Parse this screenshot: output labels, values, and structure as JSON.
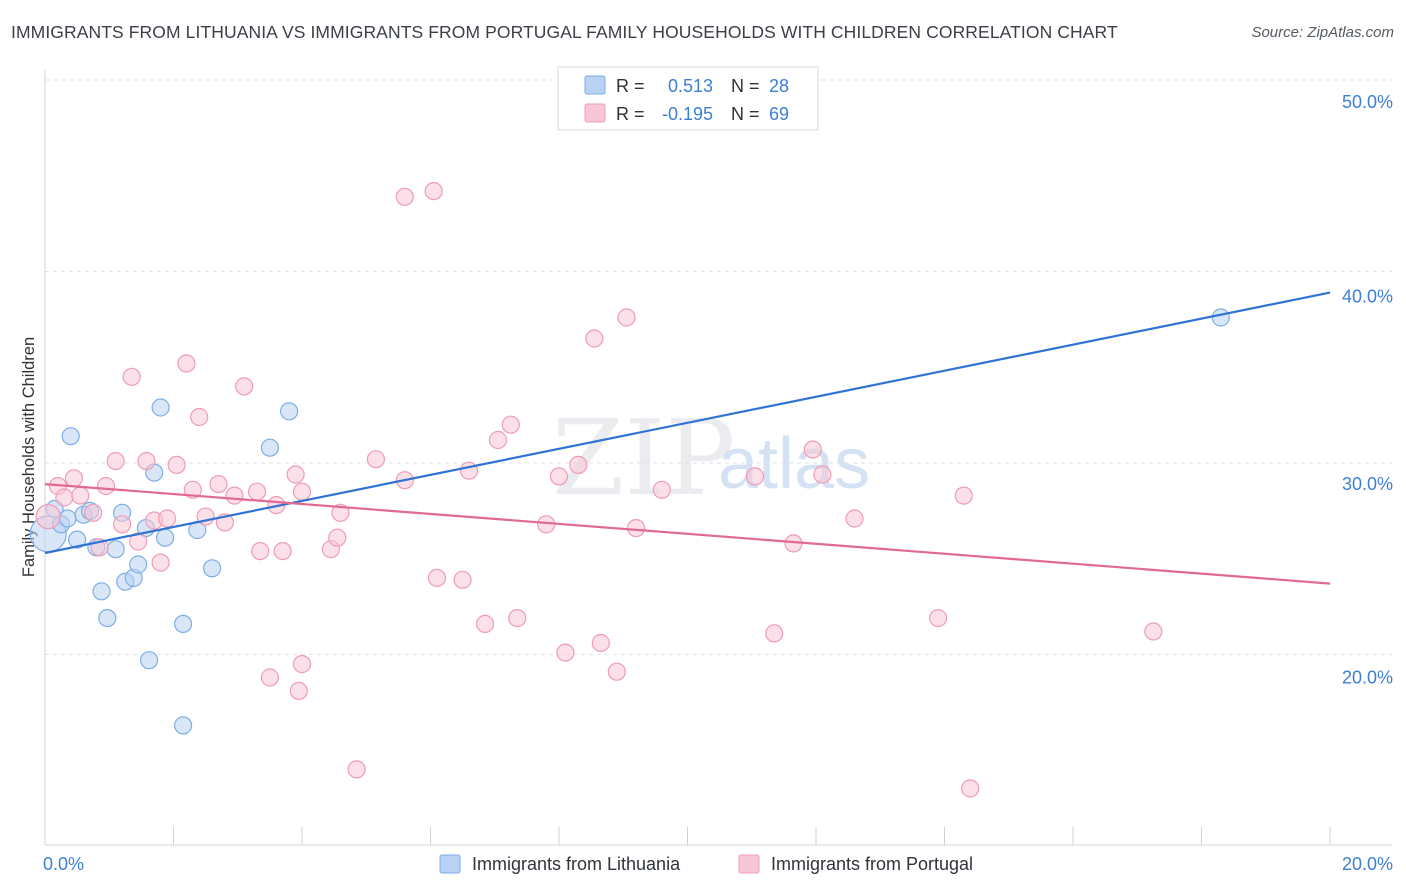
{
  "title": "IMMIGRANTS FROM LITHUANIA VS IMMIGRANTS FROM PORTUGAL FAMILY HOUSEHOLDS WITH CHILDREN CORRELATION CHART",
  "source": "Source: ZipAtlas.com",
  "watermark": {
    "zip": "ZIP",
    "atlas": "atlas"
  },
  "colors": {
    "lithuania_fill": "#b8d2f3",
    "lithuania_stroke": "#7eaee6",
    "lithuania_line": "#2f73d4",
    "portugal_fill": "#f8c6d5",
    "portugal_stroke": "#ee9cb6",
    "portugal_line": "#e06a94",
    "tick_color": "#3d7fd6",
    "grid": "#dfe2e6"
  },
  "legend_top": {
    "rows": [
      {
        "series": "lithuania",
        "r_label": "R =",
        "r_value": "0.513",
        "n_label": "N =",
        "n_value": "28"
      },
      {
        "series": "portugal",
        "r_label": "R =",
        "r_value": "-0.195",
        "n_label": "N =",
        "n_value": "69"
      }
    ]
  },
  "legend_bottom": {
    "items": [
      {
        "series": "lithuania",
        "label": "Immigrants from Lithuania"
      },
      {
        "series": "portugal",
        "label": "Immigrants from Portugal"
      }
    ]
  },
  "chart_data": {
    "type": "scatter",
    "title": "IMMIGRANTS FROM LITHUANIA VS IMMIGRANTS FROM PORTUGAL FAMILY HOUSEHOLDS WITH CHILDREN CORRELATION CHART",
    "xlabel": "",
    "ylabel": "Family Households with Children",
    "xlim": [
      0,
      20
    ],
    "ylim": [
      10,
      51
    ],
    "x_tick_labels": [
      {
        "value": 0,
        "label": "0.0%"
      },
      {
        "value": 20,
        "label": "20.0%"
      }
    ],
    "y_tick_labels": [
      {
        "value": 50,
        "label": "50.0%"
      },
      {
        "value": 40,
        "label": "40.0%"
      },
      {
        "value": 30,
        "label": "30.0%"
      },
      {
        "value": 20,
        "label": "20.0%"
      }
    ],
    "y_gridlines": [
      20,
      30,
      40,
      50
    ],
    "x_minor_ticks": [
      0,
      2,
      4,
      6,
      8,
      10,
      12,
      14,
      16,
      18,
      20
    ],
    "series": [
      {
        "name": "Immigrants from Lithuania",
        "key": "lithuania",
        "trend": {
          "x": [
            0,
            20
          ],
          "y": [
            25.3,
            38.9
          ]
        },
        "points": [
          [
            0.05,
            26.3,
            18
          ],
          [
            0.15,
            27.6,
            8
          ],
          [
            0.25,
            26.8,
            8
          ],
          [
            0.35,
            27.1,
            8
          ],
          [
            0.4,
            31.4,
            8
          ],
          [
            0.5,
            26.0,
            8
          ],
          [
            0.6,
            27.3,
            8
          ],
          [
            0.7,
            27.5,
            8
          ],
          [
            0.8,
            25.6,
            8
          ],
          [
            0.88,
            23.3,
            8
          ],
          [
            0.97,
            21.9,
            8
          ],
          [
            1.1,
            25.5,
            8
          ],
          [
            1.2,
            27.4,
            8
          ],
          [
            1.25,
            23.8,
            8
          ],
          [
            1.38,
            24.0,
            8
          ],
          [
            1.45,
            24.7,
            8
          ],
          [
            1.57,
            26.6,
            8
          ],
          [
            1.62,
            19.7,
            8
          ],
          [
            1.7,
            29.5,
            8
          ],
          [
            1.8,
            32.9,
            8
          ],
          [
            1.87,
            26.1,
            8
          ],
          [
            2.15,
            21.6,
            8
          ],
          [
            2.15,
            16.3,
            8
          ],
          [
            2.37,
            26.5,
            8
          ],
          [
            2.6,
            24.5,
            8
          ],
          [
            3.5,
            30.8,
            8
          ],
          [
            3.8,
            32.7,
            8
          ],
          [
            18.3,
            37.6,
            8
          ]
        ]
      },
      {
        "name": "Immigrants from Portugal",
        "key": "portugal",
        "trend": {
          "x": [
            0,
            20
          ],
          "y": [
            28.9,
            23.7
          ]
        },
        "points": [
          [
            0.05,
            27.2,
            12
          ],
          [
            0.2,
            28.8,
            8
          ],
          [
            0.3,
            28.2,
            8
          ],
          [
            0.45,
            29.2,
            8
          ],
          [
            0.55,
            28.3,
            8
          ],
          [
            0.75,
            27.4,
            8
          ],
          [
            0.85,
            25.6,
            8
          ],
          [
            0.95,
            28.8,
            8
          ],
          [
            1.1,
            30.1,
            8
          ],
          [
            1.2,
            26.8,
            8
          ],
          [
            1.35,
            34.5,
            8
          ],
          [
            1.45,
            25.9,
            8
          ],
          [
            1.58,
            30.1,
            8
          ],
          [
            1.7,
            27.0,
            8
          ],
          [
            1.8,
            24.8,
            8
          ],
          [
            1.9,
            27.1,
            8
          ],
          [
            2.05,
            29.9,
            8
          ],
          [
            2.2,
            35.2,
            8
          ],
          [
            2.3,
            28.6,
            8
          ],
          [
            2.4,
            32.4,
            8
          ],
          [
            2.5,
            27.2,
            8
          ],
          [
            2.7,
            28.9,
            8
          ],
          [
            2.8,
            26.9,
            8
          ],
          [
            2.95,
            28.3,
            8
          ],
          [
            3.1,
            34.0,
            8
          ],
          [
            3.3,
            28.5,
            8
          ],
          [
            3.35,
            25.4,
            8
          ],
          [
            3.5,
            18.8,
            8
          ],
          [
            3.6,
            27.8,
            8
          ],
          [
            3.7,
            25.4,
            8
          ],
          [
            3.9,
            29.4,
            8
          ],
          [
            4.0,
            28.5,
            8
          ],
          [
            3.95,
            18.1,
            8
          ],
          [
            4.0,
            19.5,
            8
          ],
          [
            4.45,
            25.5,
            8
          ],
          [
            4.55,
            26.1,
            8
          ],
          [
            4.6,
            27.4,
            8
          ],
          [
            4.85,
            14.0,
            8
          ],
          [
            5.15,
            30.2,
            8
          ],
          [
            5.6,
            29.1,
            8
          ],
          [
            5.6,
            43.9,
            8
          ],
          [
            6.05,
            44.2,
            8
          ],
          [
            6.1,
            24.0,
            8
          ],
          [
            6.5,
            23.9,
            8
          ],
          [
            6.6,
            29.6,
            8
          ],
          [
            6.85,
            21.6,
            8
          ],
          [
            7.05,
            31.2,
            8
          ],
          [
            7.25,
            32.0,
            8
          ],
          [
            7.35,
            21.9,
            8
          ],
          [
            7.8,
            26.8,
            8
          ],
          [
            8.0,
            29.3,
            8
          ],
          [
            8.1,
            20.1,
            8
          ],
          [
            8.3,
            29.9,
            8
          ],
          [
            8.55,
            36.5,
            8
          ],
          [
            8.65,
            20.6,
            8
          ],
          [
            8.9,
            19.1,
            8
          ],
          [
            9.05,
            37.6,
            8
          ],
          [
            9.2,
            26.6,
            8
          ],
          [
            9.6,
            28.6,
            8
          ],
          [
            11.05,
            29.3,
            8
          ],
          [
            11.35,
            21.1,
            8
          ],
          [
            11.65,
            25.8,
            8
          ],
          [
            11.95,
            30.7,
            8
          ],
          [
            12.1,
            29.4,
            8
          ],
          [
            12.6,
            27.1,
            8
          ],
          [
            13.9,
            21.9,
            8
          ],
          [
            14.3,
            28.3,
            8
          ],
          [
            14.4,
            13.0,
            8
          ],
          [
            17.25,
            21.2,
            8
          ]
        ]
      }
    ]
  }
}
